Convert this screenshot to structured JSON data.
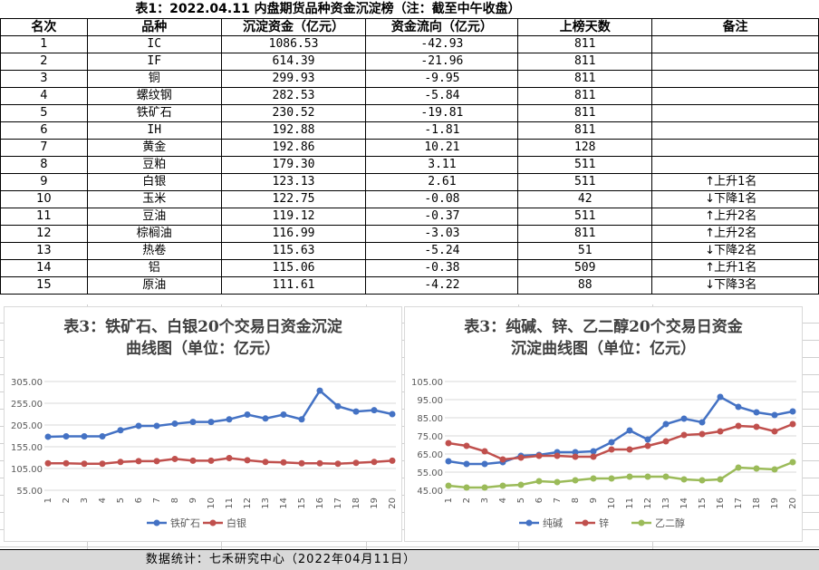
{
  "table": {
    "title": "表1：2022.04.11 内盘期货品种资金沉淀榜（注：截至中午收盘）",
    "headers": [
      "名次",
      "品种",
      "沉淀资金（亿元）",
      "资金流向（亿元）",
      "上榜天数",
      "备注"
    ],
    "rows": [
      {
        "rank": "1",
        "name": "IC",
        "capital": "1086.53",
        "flow": "-42.93",
        "days": "811",
        "arrow": "",
        "note": ""
      },
      {
        "rank": "2",
        "name": "IF",
        "capital": "614.39",
        "flow": "-21.96",
        "days": "811",
        "arrow": "",
        "note": ""
      },
      {
        "rank": "3",
        "name": "铜",
        "capital": "299.93",
        "flow": "-9.95",
        "days": "811",
        "arrow": "",
        "note": ""
      },
      {
        "rank": "4",
        "name": "螺纹钢",
        "capital": "282.53",
        "flow": "-5.84",
        "days": "811",
        "arrow": "",
        "note": ""
      },
      {
        "rank": "5",
        "name": "铁矿石",
        "capital": "230.52",
        "flow": "-19.81",
        "days": "811",
        "arrow": "",
        "note": ""
      },
      {
        "rank": "6",
        "name": "IH",
        "capital": "192.88",
        "flow": "-1.81",
        "days": "811",
        "arrow": "",
        "note": ""
      },
      {
        "rank": "7",
        "name": "黄金",
        "capital": "192.86",
        "flow": "10.21",
        "days": "128",
        "arrow": "",
        "note": ""
      },
      {
        "rank": "8",
        "name": "豆粕",
        "capital": "179.30",
        "flow": "3.11",
        "days": "511",
        "arrow": "",
        "note": ""
      },
      {
        "rank": "9",
        "name": "白银",
        "capital": "123.13",
        "flow": "2.61",
        "days": "511",
        "arrow": "↑",
        "note": "上升1名"
      },
      {
        "rank": "10",
        "name": "玉米",
        "capital": "122.75",
        "flow": "-0.08",
        "days": "42",
        "arrow": "↓",
        "note": "下降1名"
      },
      {
        "rank": "11",
        "name": "豆油",
        "capital": "119.12",
        "flow": "-0.37",
        "days": "511",
        "arrow": "↑",
        "note": "上升2名"
      },
      {
        "rank": "12",
        "name": "棕榈油",
        "capital": "116.99",
        "flow": "-3.03",
        "days": "811",
        "arrow": "↑",
        "note": "上升2名"
      },
      {
        "rank": "13",
        "name": "热卷",
        "capital": "115.63",
        "flow": "-5.24",
        "days": "51",
        "arrow": "↓",
        "note": "下降2名"
      },
      {
        "rank": "14",
        "name": "铝",
        "capital": "115.06",
        "flow": "-0.38",
        "days": "509",
        "arrow": "↑",
        "note": "上升1名"
      },
      {
        "rank": "15",
        "name": "原油",
        "capital": "111.61",
        "flow": "-4.22",
        "days": "88",
        "arrow": "↓",
        "note": "下降3名"
      }
    ]
  },
  "chart_data": [
    {
      "type": "line",
      "title_line1": "表3：铁矿石、白银20个交易日资金沉淀",
      "title_line2": "曲线图（单位：亿元）",
      "x": [
        "1",
        "2",
        "3",
        "4",
        "5",
        "6",
        "7",
        "8",
        "9",
        "10",
        "11",
        "12",
        "13",
        "14",
        "15",
        "16",
        "17",
        "18",
        "19",
        "20"
      ],
      "yticks": [
        "305.00",
        "255.00",
        "205.00",
        "155.00",
        "105.00",
        "55.00"
      ],
      "ylim": [
        55,
        305
      ],
      "grid": true,
      "legend": "bottom",
      "series": [
        {
          "name": "铁矿石",
          "color": "#4472c4",
          "values": [
            178,
            179,
            179,
            179,
            193,
            203,
            203,
            208,
            212,
            212,
            218,
            229,
            220,
            229,
            218,
            284,
            248,
            236,
            239,
            230
          ]
        },
        {
          "name": "白银",
          "color": "#c0504d",
          "values": [
            117,
            117,
            116,
            116,
            120,
            122,
            122,
            127,
            123,
            123,
            129,
            124,
            120,
            119,
            117,
            117,
            116,
            118,
            120,
            123
          ]
        }
      ]
    },
    {
      "type": "line",
      "title_line1": "表3：纯碱、锌、乙二醇20个交易日资金",
      "title_line2": "沉淀曲线图（单位：亿元）",
      "x": [
        "1",
        "2",
        "3",
        "4",
        "5",
        "6",
        "7",
        "8",
        "9",
        "10",
        "11",
        "12",
        "13",
        "14",
        "15",
        "16",
        "17",
        "18",
        "19",
        "20"
      ],
      "yticks": [
        "105.00",
        "95.00",
        "85.00",
        "75.00",
        "65.00",
        "55.00",
        "45.00"
      ],
      "ylim": [
        45,
        105
      ],
      "grid": true,
      "legend": "bottom",
      "series": [
        {
          "name": "纯碱",
          "color": "#4472c4",
          "values": [
            61,
            59.5,
            59.5,
            60.5,
            64,
            64.5,
            66,
            66,
            66.5,
            71.5,
            78,
            73,
            81.5,
            84.5,
            82.5,
            96.5,
            91,
            88,
            86.5,
            88.5
          ]
        },
        {
          "name": "锌",
          "color": "#c0504d",
          "values": [
            71,
            69.5,
            66.5,
            62,
            63,
            64,
            64,
            63.5,
            63.5,
            67.5,
            67.5,
            69.5,
            72,
            75.5,
            76,
            77.5,
            80.5,
            80,
            77.5,
            81.5
          ]
        },
        {
          "name": "乙二醇",
          "color": "#9bbb59",
          "values": [
            47.5,
            46.5,
            46.5,
            47.5,
            48,
            50,
            49.5,
            50.5,
            51.5,
            51.5,
            52.5,
            52.5,
            52.5,
            51,
            50.5,
            51,
            57.5,
            57,
            56.5,
            60.5
          ]
        }
      ]
    }
  ],
  "footer": {
    "text": "数据统计：七禾研究中心（2022年04月11日）"
  }
}
